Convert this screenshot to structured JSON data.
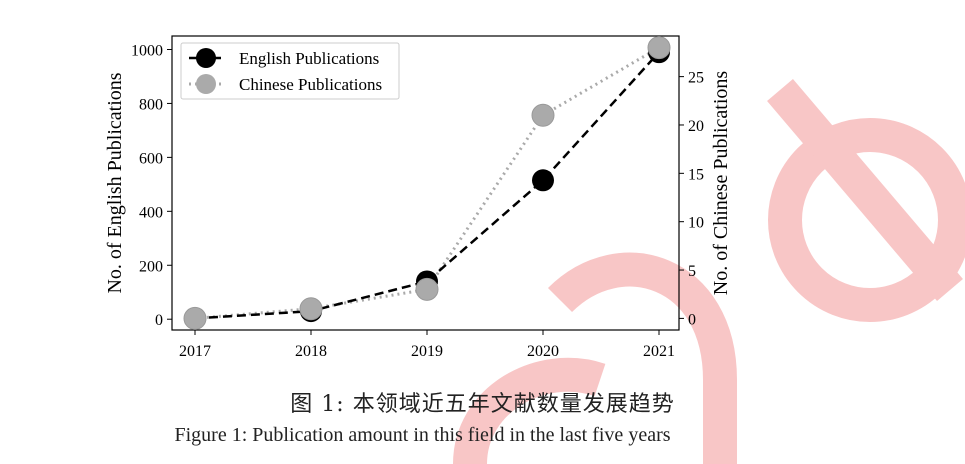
{
  "chart_data": {
    "type": "line",
    "x": [
      "2017",
      "2018",
      "2019",
      "2020",
      "2021"
    ],
    "series": [
      {
        "name": "English Publications",
        "axis": "left",
        "values": [
          3,
          30,
          140,
          515,
          990
        ],
        "color": "#000000",
        "style": "dashed"
      },
      {
        "name": "Chinese Publications",
        "axis": "right",
        "values": [
          0,
          1,
          3,
          21,
          28
        ],
        "color": "#aaaaaa",
        "style": "dotted"
      }
    ],
    "ylabel": "No. of English Publications",
    "y2label": "No. of Chinese Publications",
    "ylim": [
      -40,
      1050
    ],
    "y2lim": [
      -1.2,
      29.2
    ],
    "yticks": [
      "0",
      "200",
      "400",
      "600",
      "800",
      "1000"
    ],
    "y2ticks": [
      "0",
      "5",
      "10",
      "15",
      "20",
      "25"
    ],
    "legend": "top-left",
    "grid": false
  },
  "caption_cn": "图 1: 本领域近五年文献数量发展趋势",
  "caption_en": "Figure 1: Publication amount in this field in the last five years"
}
